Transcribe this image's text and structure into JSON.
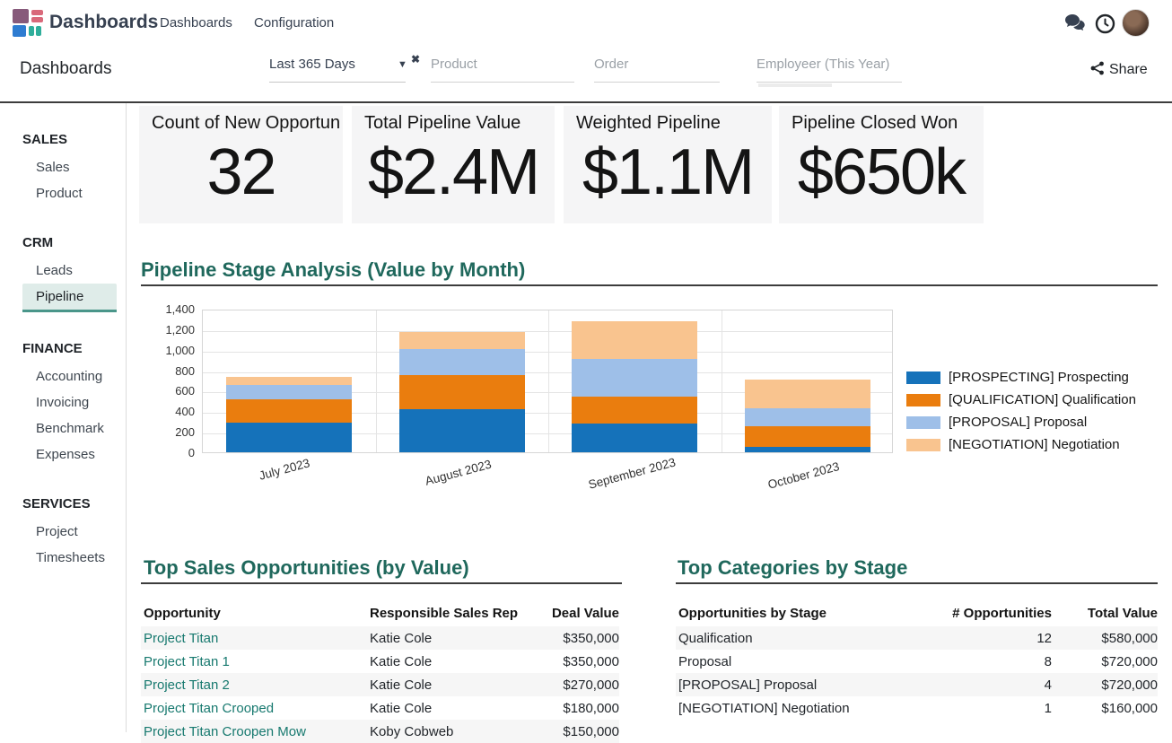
{
  "colors": {
    "accent_teal": "#1f685c",
    "link_teal": "#17796f",
    "active_item_bg": "#dfece9",
    "active_item_border": "#4a968a",
    "kpi_card_bg": "#f5f5f6",
    "rule_dark": "#3c3c3c"
  },
  "topbar": {
    "brand": "Dashboards",
    "menus": [
      "Dashboards",
      "Configuration"
    ],
    "icons": [
      "chat-icon",
      "clock-icon",
      "avatar"
    ]
  },
  "controlpanel": {
    "title": "Dashboards",
    "date_filter": "Last 365 Days",
    "filters": [
      {
        "placeholder": "Product"
      },
      {
        "placeholder": "Order"
      },
      {
        "placeholder": "Employeer (This Year)"
      }
    ],
    "share_label": "Share"
  },
  "sidebar": {
    "sections": [
      {
        "label": "SALES",
        "items": [
          {
            "label": "Sales",
            "active": false
          },
          {
            "label": "Product",
            "active": false
          }
        ]
      },
      {
        "label": "CRM",
        "items": [
          {
            "label": "Leads",
            "active": false
          },
          {
            "label": "Pipeline",
            "active": true
          }
        ]
      },
      {
        "label": "FINANCE",
        "items": [
          {
            "label": "Accounting",
            "active": false
          },
          {
            "label": "Invoicing",
            "active": false
          },
          {
            "label": "Benchmark",
            "active": false
          },
          {
            "label": "Expenses",
            "active": false
          }
        ]
      },
      {
        "label": "SERVICES",
        "items": [
          {
            "label": "Project",
            "active": false
          },
          {
            "label": "Timesheets",
            "active": false
          }
        ]
      }
    ]
  },
  "kpis": [
    {
      "title": "Count of New Opportun",
      "value": "32"
    },
    {
      "title": "Total Pipeline Value",
      "value": "$2.4M"
    },
    {
      "title": "Weighted Pipeline",
      "value": "$1.1M"
    },
    {
      "title": "Pipeline Closed Won",
      "value": "$650k"
    }
  ],
  "chart_data": {
    "type": "bar",
    "stacked": true,
    "title": "Pipeline Stage Analysis (Value by Month)",
    "categories": [
      "July 2023",
      "August 2023",
      "September 2023",
      "October 2023"
    ],
    "series": [
      {
        "name": "[PROSPECTING] Prospecting",
        "color": "#1572ba",
        "values": [
          290,
          420,
          280,
          55
        ]
      },
      {
        "name": "[QUALIFICATION] Qualification",
        "color": "#ea7d0e",
        "values": [
          230,
          330,
          260,
          200
        ]
      },
      {
        "name": "[PROPOSAL] Proposal",
        "color": "#9ebfe8",
        "values": [
          140,
          255,
          370,
          175
        ]
      },
      {
        "name": "[NEGOTIATION] Negotiation",
        "color": "#f9c48f",
        "values": [
          75,
          170,
          370,
          280
        ]
      }
    ],
    "ylim": [
      0,
      1400
    ],
    "ytick_step": 200,
    "grid": true,
    "legend_position": "right"
  },
  "tables": {
    "left": {
      "title": "Top Sales Opportunities (by Value)",
      "columns": [
        "Opportunity",
        "Responsible Sales Rep",
        "Deal Value"
      ],
      "rows": [
        [
          "Project Titan",
          "Katie Cole",
          "$350,000"
        ],
        [
          "Project Titan 1",
          "Katie Cole",
          "$350,000"
        ],
        [
          "Project Titan 2",
          "Katie Cole",
          "$270,000"
        ],
        [
          "Project Titan Crooped",
          "Katie Cole",
          "$180,000"
        ],
        [
          "Project Titan Croopen Mow",
          "Koby Cobweb",
          "$150,000"
        ]
      ],
      "first_col_is_link": true
    },
    "right": {
      "title": "Top Categories by Stage",
      "columns": [
        "Opportunities by Stage",
        "# Opportunities",
        "Total Value"
      ],
      "rows": [
        [
          "Qualification",
          "12",
          "$580,000"
        ],
        [
          "Proposal",
          "8",
          "$720,000"
        ],
        [
          "[PROPOSAL] Proposal",
          "4",
          "$720,000"
        ],
        [
          "[NEGOTIATION] Negotiation",
          "1",
          "$160,000"
        ]
      ],
      "first_col_is_link": false
    }
  }
}
